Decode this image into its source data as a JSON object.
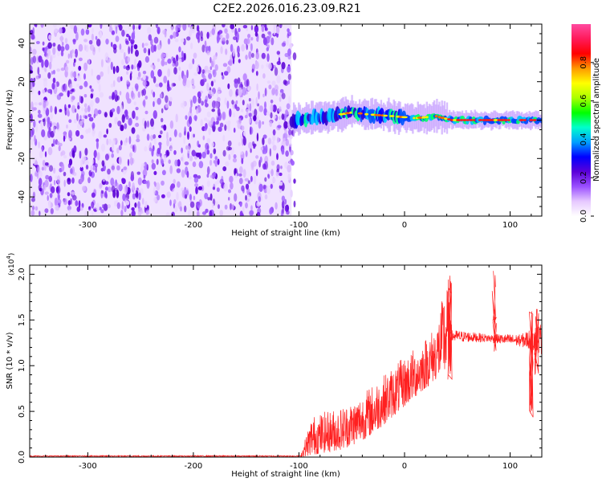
{
  "title": "C2E2.2026.016.23.09.R21",
  "chart_data": [
    {
      "type": "heatmap",
      "name": "spectrogram",
      "xlabel": "Height of straight line (km)",
      "ylabel": "Frequency (Hz)",
      "xlim": [
        -355,
        130
      ],
      "ylim": [
        -50,
        50
      ],
      "xticks": [
        -300,
        -200,
        -100,
        0,
        100
      ],
      "yticks": [
        -40,
        -20,
        0,
        20,
        40
      ],
      "noise_region_x": [
        -355,
        -107
      ],
      "signal_start_x": -107,
      "signal_center_freq": [
        {
          "x": -107,
          "f": 0
        },
        {
          "x": -90,
          "f": 1
        },
        {
          "x": -70,
          "f": 2
        },
        {
          "x": -50,
          "f": 4
        },
        {
          "x": -35,
          "f": 3
        },
        {
          "x": -10,
          "f": 2
        },
        {
          "x": 10,
          "f": 1
        },
        {
          "x": 30,
          "f": 2
        },
        {
          "x": 45,
          "f": 0
        },
        {
          "x": 80,
          "f": 0
        },
        {
          "x": 110,
          "f": 0
        },
        {
          "x": 130,
          "f": 0
        }
      ],
      "colorbar": {
        "label": "Normalized spectral amplitude",
        "range": [
          0,
          1
        ],
        "ticks": [
          "0.0",
          "0.2",
          "0.4",
          "0.6",
          "0.8"
        ],
        "tick_values": [
          0,
          0.2,
          0.4,
          0.6,
          0.8
        ],
        "colors": [
          "#ffffff",
          "#e6c8ff",
          "#9a50ff",
          "#5b00d8",
          "#0000ff",
          "#00a0ff",
          "#00ffcc",
          "#00ff00",
          "#aaff00",
          "#ffff00",
          "#ff9900",
          "#ff0000",
          "#ff1a5a",
          "#ff4aa0"
        ]
      }
    },
    {
      "type": "line",
      "name": "snr",
      "xlabel": "Height of straight line (km)",
      "ylabel": "SNR (10 * v/v)",
      "scale_note_base": "(x10",
      "scale_note_exp": "4",
      "scale_note_close": ")",
      "xlim": [
        -355,
        130
      ],
      "ylim": [
        0,
        2.1
      ],
      "xticks": [
        -300,
        -200,
        -100,
        0,
        100
      ],
      "yticks": [
        0,
        0.5,
        1.0,
        1.5,
        2.0
      ],
      "ytick_labels": [
        "0.0",
        "0.5",
        "1.0",
        "1.5",
        "2.0"
      ],
      "color": "#ff2020",
      "envelope": [
        {
          "x": -355,
          "lo": 0.0,
          "hi": 0.02
        },
        {
          "x": -110,
          "lo": 0.0,
          "hi": 0.02
        },
        {
          "x": -98,
          "lo": 0.0,
          "hi": 0.05
        },
        {
          "x": -88,
          "lo": 0.02,
          "hi": 0.45
        },
        {
          "x": -75,
          "lo": 0.05,
          "hi": 0.5
        },
        {
          "x": -60,
          "lo": 0.08,
          "hi": 0.55
        },
        {
          "x": -45,
          "lo": 0.15,
          "hi": 0.65
        },
        {
          "x": -30,
          "lo": 0.25,
          "hi": 0.8
        },
        {
          "x": -15,
          "lo": 0.4,
          "hi": 0.95
        },
        {
          "x": 0,
          "lo": 0.55,
          "hi": 1.1
        },
        {
          "x": 15,
          "lo": 0.7,
          "hi": 1.25
        },
        {
          "x": 30,
          "lo": 0.85,
          "hi": 1.45
        },
        {
          "x": 40,
          "lo": 0.9,
          "hi": 1.95
        },
        {
          "x": 45,
          "lo": 1.25,
          "hi": 1.4
        },
        {
          "x": 80,
          "lo": 1.25,
          "hi": 1.35
        },
        {
          "x": 110,
          "lo": 1.2,
          "hi": 1.35
        },
        {
          "x": 130,
          "lo": 1.1,
          "hi": 1.5
        }
      ],
      "spikes": [
        {
          "x": 43,
          "lo": 0.8,
          "hi": 2.0
        },
        {
          "x": 85,
          "lo": 1.15,
          "hi": 2.05
        },
        {
          "x": 120,
          "lo": 0.42,
          "hi": 1.6
        },
        {
          "x": 125,
          "lo": 0.9,
          "hi": 1.65
        }
      ]
    }
  ]
}
